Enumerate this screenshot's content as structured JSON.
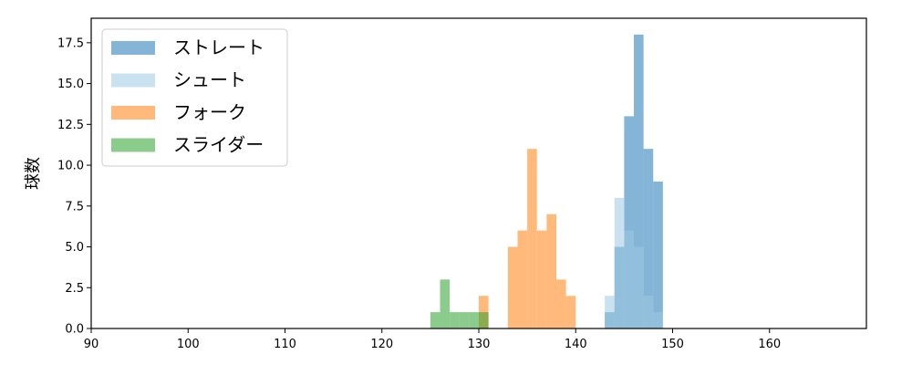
{
  "chart_data": {
    "type": "histogram",
    "xlabel": "",
    "ylabel": "球数",
    "xlim": [
      90,
      170
    ],
    "ylim": [
      0,
      19
    ],
    "xticks": [
      90,
      100,
      110,
      120,
      130,
      140,
      150,
      160
    ],
    "yticks": [
      "0.0",
      "2.5",
      "5.0",
      "7.5",
      "10.0",
      "12.5",
      "15.0",
      "17.5"
    ],
    "bin_width": 1,
    "legend_position": "top-left",
    "series": [
      {
        "name": "ストレート",
        "color": "#1f77b4",
        "bins": [
          {
            "x": 143,
            "count": 1
          },
          {
            "x": 144,
            "count": 5
          },
          {
            "x": 145,
            "count": 13
          },
          {
            "x": 146,
            "count": 18
          },
          {
            "x": 147,
            "count": 11
          },
          {
            "x": 148,
            "count": 9
          }
        ]
      },
      {
        "name": "シュート",
        "color": "#9ecae1",
        "bins": [
          {
            "x": 143,
            "count": 2
          },
          {
            "x": 144,
            "count": 8
          },
          {
            "x": 145,
            "count": 6
          },
          {
            "x": 146,
            "count": 5
          },
          {
            "x": 147,
            "count": 2
          },
          {
            "x": 148,
            "count": 1
          }
        ]
      },
      {
        "name": "フォーク",
        "color": "#ff7f0e",
        "bins": [
          {
            "x": 130,
            "count": 2
          },
          {
            "x": 133,
            "count": 5
          },
          {
            "x": 134,
            "count": 6
          },
          {
            "x": 135,
            "count": 11
          },
          {
            "x": 136,
            "count": 6
          },
          {
            "x": 137,
            "count": 7
          },
          {
            "x": 138,
            "count": 3
          },
          {
            "x": 139,
            "count": 2
          }
        ]
      },
      {
        "name": "スライダー",
        "color": "#2ca02c",
        "bins": [
          {
            "x": 125,
            "count": 1
          },
          {
            "x": 126,
            "count": 3
          },
          {
            "x": 127,
            "count": 1
          },
          {
            "x": 128,
            "count": 1
          },
          {
            "x": 129,
            "count": 1
          },
          {
            "x": 130,
            "count": 1
          }
        ]
      }
    ]
  }
}
